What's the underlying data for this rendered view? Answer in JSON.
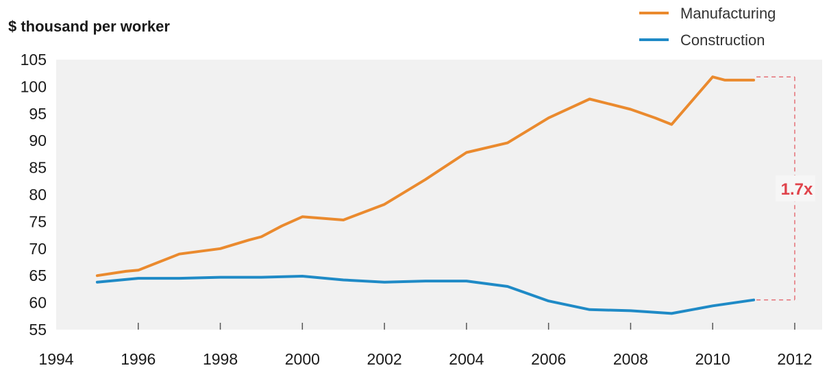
{
  "chart_data": {
    "type": "line",
    "ylabel": "$ thousand per worker",
    "xlabel": "",
    "xlim": [
      1994,
      2012
    ],
    "ylim": [
      55,
      105
    ],
    "x_ticks": [
      "1994",
      "1996",
      "1998",
      "2000",
      "2002",
      "2004",
      "2006",
      "2008",
      "2010",
      "2012"
    ],
    "y_ticks": [
      "55",
      "60",
      "65",
      "70",
      "75",
      "80",
      "85",
      "90",
      "95",
      "100",
      "105"
    ],
    "grid": false,
    "legend_position": "top-right",
    "series": [
      {
        "name": "Manufacturing",
        "color": "#ea8a2e",
        "x": [
          1995,
          1995.7,
          1996,
          1997,
          1998,
          1998.7,
          1999,
          1999.5,
          2000,
          2001,
          2002,
          2003,
          2004,
          2005,
          2006,
          2006.4,
          2007,
          2008,
          2008.6,
          2009,
          2010,
          2010.3,
          2011
        ],
        "values": [
          65.0,
          65.8,
          66.0,
          69.0,
          70.0,
          71.6,
          72.2,
          74.2,
          75.9,
          75.3,
          78.2,
          82.8,
          87.8,
          89.6,
          94.2,
          95.6,
          97.7,
          95.8,
          94.2,
          93.0,
          101.8,
          101.2,
          101.2
        ]
      },
      {
        "name": "Construction",
        "color": "#1f8ac6",
        "x": [
          1995,
          1996,
          1997,
          1998,
          1999,
          2000,
          2001,
          2002,
          2003,
          2004,
          2005,
          2006,
          2007,
          2008,
          2009,
          2010,
          2011
        ],
        "values": [
          63.8,
          64.5,
          64.5,
          64.7,
          64.7,
          64.9,
          64.2,
          63.8,
          64.0,
          64.0,
          63.0,
          60.3,
          58.7,
          58.5,
          58.0,
          59.4,
          60.5
        ]
      }
    ],
    "annotation": {
      "text": "1.7x",
      "color": "#e0434b",
      "from_value": 60.5,
      "to_value": 101.8
    }
  }
}
